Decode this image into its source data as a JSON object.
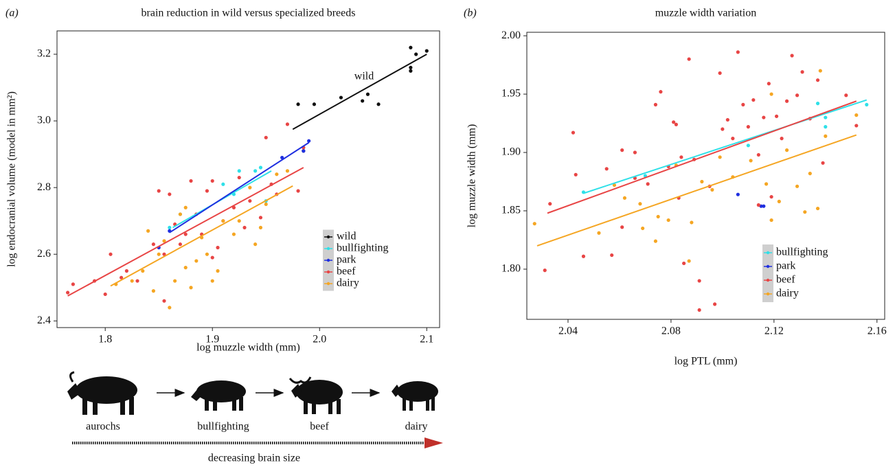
{
  "panel_labels": [
    "(a)",
    "(b)"
  ],
  "diagram": {
    "labels": [
      "aurochs",
      "bullfighting",
      "beef",
      "dairy"
    ],
    "caption": "decreasing brain size"
  },
  "chart_data": [
    {
      "type": "scatter",
      "title": "brain reduction in wild versus specialized breeds",
      "x_label": "log muzzle width (mm)",
      "y_label": "log endocranial volume (model in mm²)",
      "annotation": "wild",
      "xlim": [
        1.755,
        2.112
      ],
      "ylim": [
        2.38,
        3.27
      ],
      "xticks": [
        1.8,
        1.9,
        {
          "value": 2,
          "label": "2.0"
        },
        2.1
      ],
      "yticks": [
        2.4,
        2.6,
        2.8,
        {
          "value": 3,
          "label": "3.0"
        },
        3.2
      ],
      "legend": "lower right",
      "series": [
        {
          "name": "wild",
          "color": "#111111",
          "x": [
            1.98,
            1.995,
            1.985,
            2.02,
            2.04,
            2.045,
            2.055,
            2.085,
            2.09,
            2.1,
            2.085,
            2.085
          ],
          "values": [
            3.05,
            3.05,
            2.91,
            3.07,
            3.06,
            3.08,
            3.05,
            3.22,
            3.2,
            3.21,
            3.15,
            3.16
          ],
          "fit_x": [
            1.975,
            2.1
          ],
          "fit_y": [
            2.975,
            3.2
          ]
        },
        {
          "name": "bullfighting",
          "color": "#2fe0e8",
          "x": [
            1.86,
            1.91,
            1.925,
            1.94,
            1.945,
            1.92,
            1.87,
            1.95
          ],
          "values": [
            2.68,
            2.81,
            2.85,
            2.85,
            2.86,
            2.78,
            2.72,
            2.76
          ],
          "fit_x": [
            1.863,
            1.955
          ],
          "fit_y": [
            2.68,
            2.85
          ]
        },
        {
          "name": "park",
          "color": "#1f2fe0",
          "x": [
            1.85,
            1.86,
            1.965,
            1.99,
            1.985
          ],
          "values": [
            2.62,
            2.67,
            2.89,
            2.94,
            2.91
          ],
          "fit_x": [
            1.86,
            1.99
          ],
          "fit_y": [
            2.665,
            2.935
          ]
        },
        {
          "name": "beef",
          "color": "#e84545",
          "x": [
            1.765,
            1.77,
            1.79,
            1.8,
            1.805,
            1.815,
            1.82,
            1.83,
            1.845,
            1.85,
            1.855,
            1.86,
            1.865,
            1.87,
            1.875,
            1.88,
            1.885,
            1.89,
            1.895,
            1.9,
            1.905,
            1.91,
            1.92,
            1.925,
            1.93,
            1.935,
            1.945,
            1.95,
            1.955,
            1.96,
            1.97,
            1.98,
            1.985,
            1.855,
            1.9
          ],
          "values": [
            2.485,
            2.51,
            2.52,
            2.48,
            2.6,
            2.53,
            2.55,
            2.52,
            2.63,
            2.79,
            2.6,
            2.78,
            2.69,
            2.63,
            2.66,
            2.82,
            2.72,
            2.66,
            2.79,
            2.82,
            2.62,
            2.7,
            2.74,
            2.83,
            2.68,
            2.76,
            2.71,
            2.95,
            2.81,
            2.78,
            2.99,
            2.79,
            2.92,
            2.46,
            2.59
          ],
          "fit_x": [
            1.765,
            1.985
          ],
          "fit_y": [
            2.475,
            2.86
          ]
        },
        {
          "name": "dairy",
          "color": "#f5a623",
          "x": [
            1.81,
            1.825,
            1.835,
            1.84,
            1.845,
            1.85,
            1.855,
            1.865,
            1.87,
            1.875,
            1.88,
            1.885,
            1.89,
            1.895,
            1.9,
            1.905,
            1.91,
            1.92,
            1.925,
            1.935,
            1.94,
            1.945,
            1.95,
            1.96,
            1.97,
            1.86,
            1.875
          ],
          "values": [
            2.51,
            2.52,
            2.55,
            2.67,
            2.49,
            2.6,
            2.64,
            2.52,
            2.72,
            2.56,
            2.5,
            2.58,
            2.65,
            2.6,
            2.52,
            2.55,
            2.7,
            2.66,
            2.7,
            2.8,
            2.63,
            2.68,
            2.75,
            2.84,
            2.85,
            2.44,
            2.74
          ],
          "fit_x": [
            1.805,
            1.975
          ],
          "fit_y": [
            2.505,
            2.805
          ]
        }
      ]
    },
    {
      "type": "scatter",
      "title": "muzzle width variation",
      "x_label": "log PTL (mm)",
      "y_label": "log muzzle width (mm)",
      "xlim": [
        2.024,
        2.163
      ],
      "ylim": [
        1.757,
        2.003
      ],
      "xticks": [
        2.04,
        2.08,
        2.12,
        2.16
      ],
      "yticks": [
        {
          "value": 1.8,
          "label": "1.80"
        },
        1.85,
        {
          "value": 1.9,
          "label": "1.90"
        },
        1.95,
        {
          "value": 2,
          "label": "2.00"
        }
      ],
      "legend": "lower right",
      "series": [
        {
          "name": "bullfighting",
          "color": "#2fe0e8",
          "x": [
            2.046,
            2.07,
            2.11,
            2.137,
            2.14,
            2.156,
            2.14
          ],
          "values": [
            1.866,
            1.88,
            1.906,
            1.942,
            1.922,
            1.941,
            1.93
          ],
          "fit_x": [
            2.046,
            2.156
          ],
          "fit_y": [
            1.865,
            1.945
          ]
        },
        {
          "name": "park",
          "color": "#1f2fe0",
          "x": [
            2.106,
            2.116,
            2.115
          ],
          "values": [
            1.864,
            1.854,
            1.854
          ]
        },
        {
          "name": "beef",
          "color": "#e84545",
          "x": [
            2.031,
            2.033,
            2.042,
            2.043,
            2.046,
            2.055,
            2.057,
            2.061,
            2.061,
            2.066,
            2.066,
            2.071,
            2.074,
            2.076,
            2.079,
            2.081,
            2.082,
            2.083,
            2.084,
            2.085,
            2.087,
            2.089,
            2.091,
            2.091,
            2.095,
            2.097,
            2.099,
            2.1,
            2.102,
            2.104,
            2.106,
            2.108,
            2.11,
            2.112,
            2.114,
            2.116,
            2.118,
            2.119,
            2.121,
            2.123,
            2.125,
            2.127,
            2.129,
            2.131,
            2.134,
            2.137,
            2.139,
            2.148,
            2.152,
            2.114
          ],
          "values": [
            1.799,
            1.856,
            1.917,
            1.881,
            1.811,
            1.886,
            1.812,
            1.902,
            1.836,
            1.9,
            1.878,
            1.873,
            1.941,
            1.952,
            1.888,
            1.926,
            1.924,
            1.861,
            1.896,
            1.805,
            1.98,
            1.894,
            1.79,
            1.765,
            1.871,
            1.77,
            1.968,
            1.92,
            1.928,
            1.912,
            1.986,
            1.941,
            1.922,
            1.945,
            1.898,
            1.93,
            1.959,
            1.862,
            1.931,
            1.912,
            1.944,
            1.983,
            1.949,
            1.969,
            1.929,
            1.962,
            1.891,
            1.949,
            1.923,
            1.855
          ],
          "fit_x": [
            2.032,
            2.152
          ],
          "fit_y": [
            1.848,
            1.944
          ]
        },
        {
          "name": "dairy",
          "color": "#f5a623",
          "x": [
            2.027,
            2.052,
            2.058,
            2.062,
            2.068,
            2.069,
            2.074,
            2.075,
            2.079,
            2.082,
            2.087,
            2.088,
            2.092,
            2.096,
            2.099,
            2.104,
            2.111,
            2.117,
            2.119,
            2.122,
            2.125,
            2.129,
            2.132,
            2.134,
            2.137,
            2.138,
            2.14,
            2.152,
            2.119
          ],
          "values": [
            1.839,
            1.831,
            1.872,
            1.861,
            1.856,
            1.835,
            1.824,
            1.845,
            1.842,
            1.889,
            1.807,
            1.84,
            1.875,
            1.868,
            1.896,
            1.879,
            1.893,
            1.873,
            1.842,
            1.858,
            1.902,
            1.871,
            1.849,
            1.882,
            1.852,
            1.97,
            1.914,
            1.932,
            1.95
          ],
          "fit_x": [
            2.028,
            2.152
          ],
          "fit_y": [
            1.82,
            1.915
          ]
        }
      ]
    }
  ]
}
